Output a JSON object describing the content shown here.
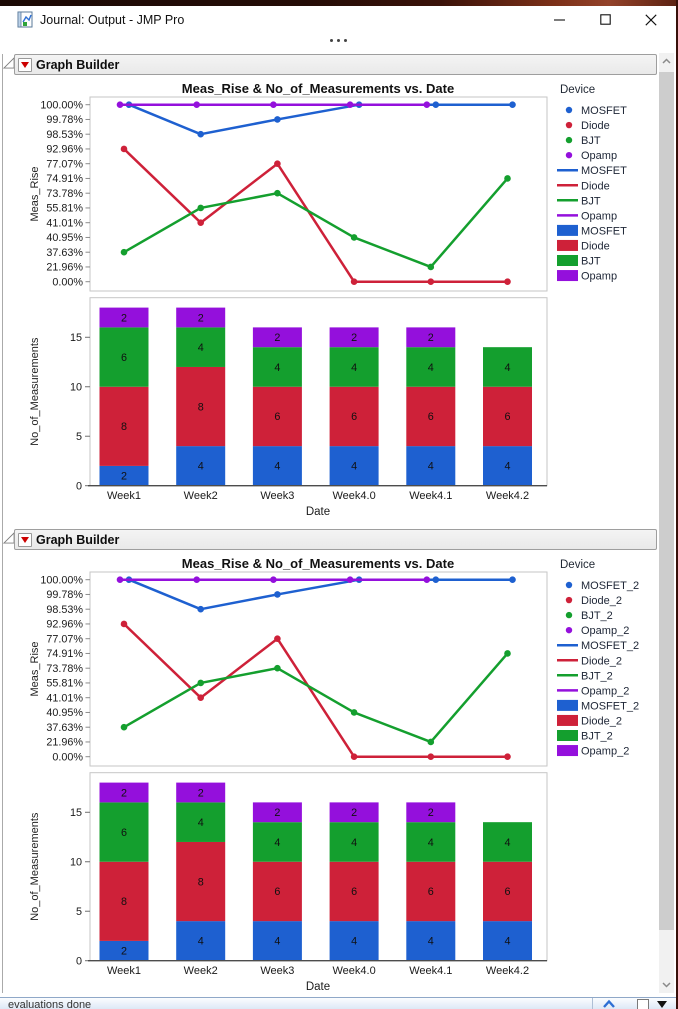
{
  "window": {
    "title": "Journal: Output - JMP Pro",
    "controls": {
      "minimize": "minimize",
      "maximize": "maximize",
      "close": "close"
    }
  },
  "sections": [
    {
      "header": {
        "label": "Graph Builder"
      }
    },
    {
      "header": {
        "label": "Graph Builder"
      }
    }
  ],
  "statusbar": {
    "text": "evaluations done"
  },
  "chart_data": [
    {
      "type": "combo-line-stackedbar",
      "title": "Meas_Rise & No_of_Measurements vs. Date",
      "xlabel": "Date",
      "categories": [
        "Week1",
        "Week2",
        "Week3",
        "Week4.0",
        "Week4.1",
        "Week4.2"
      ],
      "line_panel": {
        "ylabel": "Meas_Rise",
        "yticks": [
          "100.00%",
          "99.78%",
          "98.53%",
          "92.96%",
          "77.07%",
          "74.91%",
          "73.78%",
          "55.81%",
          "41.01%",
          "40.95%",
          "37.63%",
          "21.96%",
          "0.00%"
        ],
        "series": [
          {
            "name": "MOSFET",
            "color": "#1e60d0",
            "values": [
              "100.00%",
              "98.53%",
              "99.78%",
              "100.00%",
              "100.00%",
              "100.00%"
            ]
          },
          {
            "name": "Diode",
            "color": "#ce2139",
            "values": [
              "92.96%",
              "41.01%",
              "77.07%",
              "0.00%",
              "0.00%",
              "0.00%"
            ]
          },
          {
            "name": "BJT",
            "color": "#149f2e",
            "values": [
              "37.63%",
              "55.81%",
              "73.78%",
              "40.95%",
              "21.96%",
              "74.91%"
            ]
          },
          {
            "name": "Opamp",
            "color": "#9410dc",
            "values": [
              "100.00%",
              "100.00%",
              "100.00%",
              "100.00%",
              "100.00%",
              null
            ]
          }
        ]
      },
      "bar_panel": {
        "ylabel": "No_of_Measurements",
        "yticks": [
          0,
          5,
          10,
          15
        ],
        "ymax": 19,
        "stacks": [
          {
            "name": "MOSFET",
            "color": "#1e60d0",
            "values": [
              2,
              4,
              4,
              4,
              4,
              4
            ]
          },
          {
            "name": "Diode",
            "color": "#ce2139",
            "values": [
              8,
              8,
              6,
              6,
              6,
              6
            ]
          },
          {
            "name": "BJT",
            "color": "#149f2e",
            "values": [
              6,
              4,
              4,
              4,
              4,
              4
            ]
          },
          {
            "name": "Opamp",
            "color": "#9410dc",
            "values": [
              2,
              2,
              2,
              2,
              2,
              0
            ]
          }
        ]
      },
      "legend": {
        "title": "Device",
        "entries": [
          "MOSFET",
          "Diode",
          "BJT",
          "Opamp"
        ]
      }
    },
    {
      "type": "combo-line-stackedbar",
      "title": "Meas_Rise & No_of_Measurements vs. Date",
      "xlabel": "Date",
      "categories": [
        "Week1",
        "Week2",
        "Week3",
        "Week4.0",
        "Week4.1",
        "Week4.2"
      ],
      "line_panel": {
        "ylabel": "Meas_Rise",
        "yticks": [
          "100.00%",
          "99.78%",
          "98.53%",
          "92.96%",
          "77.07%",
          "74.91%",
          "73.78%",
          "55.81%",
          "41.01%",
          "40.95%",
          "37.63%",
          "21.96%",
          "0.00%"
        ],
        "series": [
          {
            "name": "MOSFET_2",
            "color": "#1e60d0",
            "values": [
              "100.00%",
              "98.53%",
              "99.78%",
              "100.00%",
              "100.00%",
              "100.00%"
            ]
          },
          {
            "name": "Diode_2",
            "color": "#ce2139",
            "values": [
              "92.96%",
              "41.01%",
              "77.07%",
              "0.00%",
              "0.00%",
              "0.00%"
            ]
          },
          {
            "name": "BJT_2",
            "color": "#149f2e",
            "values": [
              "37.63%",
              "55.81%",
              "73.78%",
              "40.95%",
              "21.96%",
              "74.91%"
            ]
          },
          {
            "name": "Opamp_2",
            "color": "#9410dc",
            "values": [
              "100.00%",
              "100.00%",
              "100.00%",
              "100.00%",
              "100.00%",
              null
            ]
          }
        ]
      },
      "bar_panel": {
        "ylabel": "No_of_Measurements",
        "yticks": [
          0,
          5,
          10,
          15
        ],
        "ymax": 19,
        "stacks": [
          {
            "name": "MOSFET_2",
            "color": "#1e60d0",
            "values": [
              2,
              4,
              4,
              4,
              4,
              4
            ]
          },
          {
            "name": "Diode_2",
            "color": "#ce2139",
            "values": [
              8,
              8,
              6,
              6,
              6,
              6
            ]
          },
          {
            "name": "BJT_2",
            "color": "#149f2e",
            "values": [
              6,
              4,
              4,
              4,
              4,
              4
            ]
          },
          {
            "name": "Opamp_2",
            "color": "#9410dc",
            "values": [
              2,
              2,
              2,
              2,
              2,
              0
            ]
          }
        ]
      },
      "legend": {
        "title": "Device",
        "entries": [
          "MOSFET_2",
          "Diode_2",
          "BJT_2",
          "Opamp_2"
        ]
      }
    }
  ]
}
